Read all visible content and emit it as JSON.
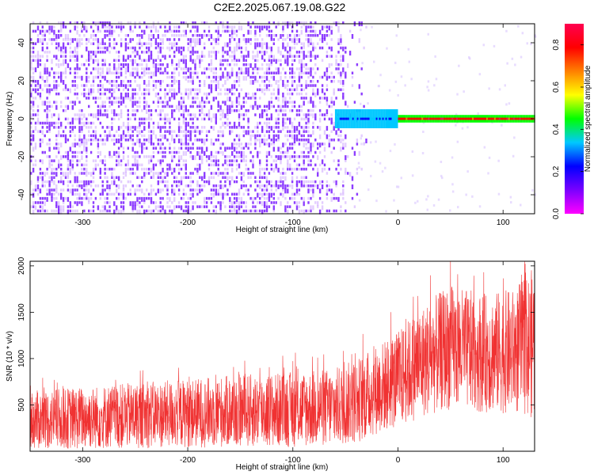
{
  "title": "C2E2.2025.067.19.08.G22",
  "chart_data": [
    {
      "type": "heatmap",
      "xlabel": "Height of straight line (km)",
      "ylabel": "Frequency (Hz)",
      "xlim": [
        -350,
        130
      ],
      "ylim": [
        -50,
        50
      ],
      "xticks": [
        -300,
        -200,
        -100,
        0,
        100
      ],
      "yticks": [
        -40,
        -20,
        0,
        20,
        40
      ],
      "colorbar": {
        "label": "Normalized spectral amplitude",
        "range": [
          0.0,
          0.9
        ],
        "ticks": [
          "0.0",
          "0.2",
          "0.4",
          "0.6",
          "0.8"
        ],
        "colormap": [
          "#ff00ff",
          "#7a00ff",
          "#0000ff",
          "#00c8ff",
          "#00ff00",
          "#ffff00",
          "#ff8000",
          "#ff0000",
          "#ff0050"
        ]
      },
      "regions": [
        {
          "name": "noise",
          "x_range": [
            -350,
            -60
          ],
          "y_range": [
            -50,
            50
          ],
          "amplitude": 0.05
        },
        {
          "name": "transition",
          "x_range": [
            -60,
            0
          ],
          "y_range": [
            -5,
            5
          ],
          "amplitude": 0.3
        },
        {
          "name": "signal",
          "x_range": [
            0,
            130
          ],
          "y_range": [
            -2,
            2
          ],
          "amplitude": 0.85
        }
      ]
    },
    {
      "type": "line",
      "xlabel": "Height of straight line (km)",
      "ylabel": "SNR (10 * v/v)",
      "xlim": [
        -350,
        130
      ],
      "ylim": [
        0,
        2050
      ],
      "xticks": [
        -300,
        -200,
        -100,
        0,
        100
      ],
      "yticks": [
        500,
        1000,
        1500,
        2000
      ],
      "series": [
        {
          "color": "#f03232",
          "envelope": [
            {
              "x": -350,
              "low": 20,
              "high": 650
            },
            {
              "x": -300,
              "low": 20,
              "high": 700
            },
            {
              "x": -250,
              "low": 30,
              "high": 740
            },
            {
              "x": -200,
              "low": 40,
              "high": 780
            },
            {
              "x": -150,
              "low": 40,
              "high": 830
            },
            {
              "x": -100,
              "low": 40,
              "high": 860
            },
            {
              "x": -60,
              "low": 50,
              "high": 900
            },
            {
              "x": -40,
              "low": 80,
              "high": 1000
            },
            {
              "x": -20,
              "low": 180,
              "high": 1150
            },
            {
              "x": 0,
              "low": 250,
              "high": 1300
            },
            {
              "x": 20,
              "low": 350,
              "high": 1550
            },
            {
              "x": 50,
              "low": 450,
              "high": 1800
            },
            {
              "x": 80,
              "low": 420,
              "high": 1700
            },
            {
              "x": 110,
              "low": 400,
              "high": 1750
            },
            {
              "x": 130,
              "low": 350,
              "high": 2000
            }
          ]
        }
      ]
    }
  ]
}
